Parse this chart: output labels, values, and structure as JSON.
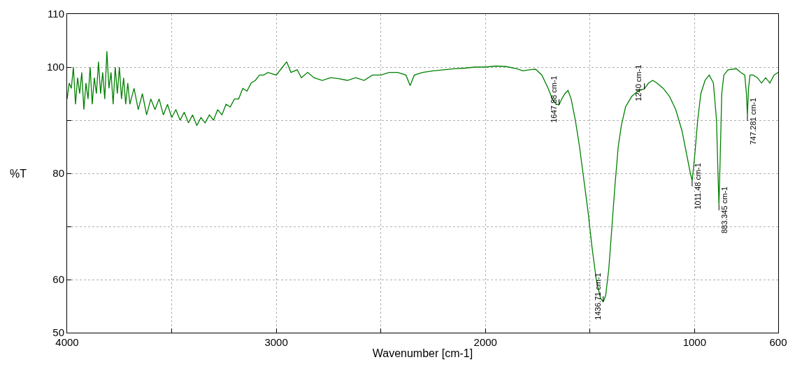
{
  "chart_data": {
    "type": "line",
    "xlabel": "Wavenumber [cm-1]",
    "ylabel": "%T",
    "xlim": [
      4000,
      600
    ],
    "xticks": [
      4000,
      {
        "value": 3500,
        "label": null
      },
      3000,
      {
        "value": 2500,
        "label": null
      },
      2000,
      {
        "value": 1500,
        "label": null
      },
      1000,
      600
    ],
    "ylim": [
      50,
      110
    ],
    "yticks": [
      50,
      60,
      {
        "value": 70,
        "label": null
      },
      80,
      {
        "value": 90,
        "label": null
      },
      100,
      110
    ],
    "grid": true,
    "marker": "none",
    "line_style": "solid",
    "series": [
      {
        "color": "#008000",
        "x": [
          4000,
          3990,
          3980,
          3970,
          3960,
          3950,
          3940,
          3930,
          3920,
          3910,
          3900,
          3890,
          3880,
          3870,
          3860,
          3850,
          3840,
          3830,
          3820,
          3810,
          3800,
          3790,
          3780,
          3770,
          3760,
          3750,
          3740,
          3730,
          3720,
          3710,
          3700,
          3680,
          3660,
          3640,
          3620,
          3600,
          3580,
          3560,
          3540,
          3520,
          3500,
          3480,
          3460,
          3440,
          3420,
          3400,
          3380,
          3360,
          3340,
          3320,
          3300,
          3280,
          3260,
          3240,
          3220,
          3200,
          3180,
          3160,
          3140,
          3120,
          3100,
          3080,
          3060,
          3040,
          3000,
          2970,
          2950,
          2930,
          2900,
          2880,
          2850,
          2820,
          2780,
          2740,
          2700,
          2660,
          2620,
          2580,
          2540,
          2500,
          2460,
          2420,
          2380,
          2360,
          2340,
          2300,
          2250,
          2200,
          2150,
          2100,
          2050,
          2000,
          1950,
          1900,
          1850,
          1820,
          1790,
          1760,
          1730,
          1700,
          1680,
          1660,
          1647.88,
          1635,
          1620,
          1605,
          1590,
          1570,
          1550,
          1530,
          1510,
          1490,
          1470,
          1450,
          1436.71,
          1425,
          1410,
          1395,
          1380,
          1365,
          1350,
          1330,
          1300,
          1270,
          1240,
          1220,
          1200,
          1180,
          1150,
          1120,
          1090,
          1060,
          1040,
          1020,
          1011.48,
          1000,
          985,
          970,
          950,
          930,
          910,
          895,
          888,
          883.345,
          878,
          870,
          860,
          840,
          800,
          780,
          760,
          752,
          747.281,
          742,
          735,
          720,
          700,
          680,
          660,
          640,
          620,
          600
        ],
        "values": [
          94,
          97,
          96,
          100,
          93,
          98,
          95,
          99,
          92,
          97,
          94,
          100,
          93,
          98,
          95,
          101,
          95,
          99,
          94,
          103,
          96,
          99,
          93,
          100,
          95,
          100,
          94,
          98,
          93,
          97,
          93,
          96,
          92,
          95,
          91,
          94,
          92,
          94,
          91,
          93,
          90.5,
          92,
          90,
          91.5,
          89.5,
          91,
          89,
          90.5,
          89.5,
          91,
          90,
          92,
          91,
          93,
          92.5,
          94,
          94,
          96,
          95.5,
          97,
          97.5,
          98.5,
          98.5,
          99,
          98.5,
          100,
          101,
          99,
          99.5,
          98,
          99,
          98,
          97.5,
          98,
          97.8,
          97.5,
          98,
          97.5,
          98.5,
          98.5,
          99,
          99,
          98.5,
          96.5,
          98.5,
          99,
          99.3,
          99.5,
          99.7,
          99.8,
          100,
          100,
          100.2,
          100.1,
          99.7,
          99.3,
          99.5,
          99.6,
          98.5,
          96,
          94,
          93,
          92.9,
          94,
          95,
          95.6,
          94,
          90,
          85,
          79,
          73,
          66,
          60,
          56.5,
          55.8,
          57,
          62,
          70,
          78,
          85,
          89,
          92.5,
          94.5,
          95.5,
          95.9,
          97,
          97.5,
          97,
          96,
          94.5,
          92,
          88,
          84,
          80,
          78.6,
          83,
          90,
          95,
          97.5,
          98.5,
          97,
          90,
          80,
          74.1,
          82,
          95,
          98.5,
          99.5,
          99.7,
          99,
          98.5,
          95,
          90.9,
          96,
          98.5,
          98.5,
          98,
          97,
          98,
          97,
          98.5,
          99
        ]
      }
    ],
    "annotations": [
      {
        "text": "1647.88 cm-1",
        "x": 1647.88,
        "y": 92.9
      },
      {
        "text": "1436.71 cm-1",
        "x": 1436.71,
        "y": 55.8
      },
      {
        "text": "1240 cm-1",
        "x": 1240,
        "y": 95.9
      },
      {
        "text": "1011.48 cm-1",
        "x": 1011.48,
        "y": 78.6
      },
      {
        "text": "883.345 cm-1",
        "x": 883.345,
        "y": 74.1
      },
      {
        "text": "747.281 cm-1",
        "x": 747.281,
        "y": 90.9
      }
    ]
  }
}
